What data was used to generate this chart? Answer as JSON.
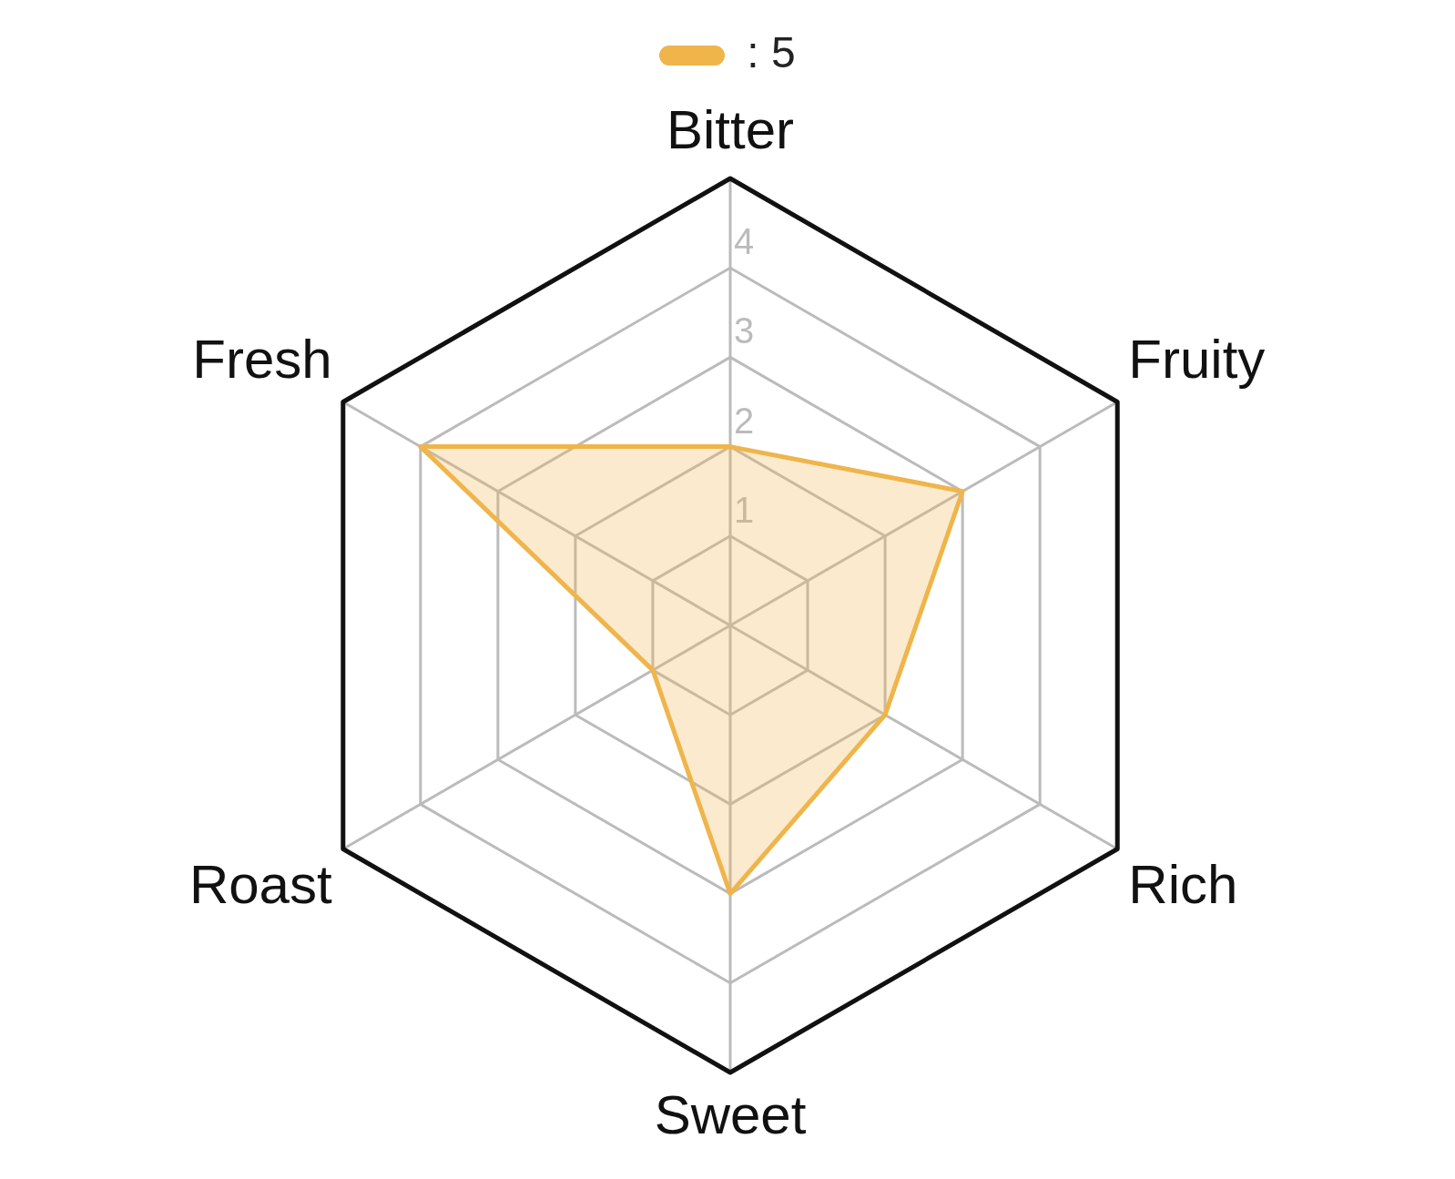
{
  "chart_data": {
    "type": "radar",
    "categories": [
      "Bitter",
      "Fruity",
      "Rich",
      "Sweet",
      "Roast",
      "Fresh"
    ],
    "series": [
      {
        "name": ": 5",
        "color": "#efb54b",
        "values": [
          2,
          3,
          2,
          3,
          1,
          4
        ]
      }
    ],
    "ylim": [
      0,
      5
    ],
    "yticks": [
      1,
      2,
      3,
      4
    ],
    "grid": true,
    "legend": "top",
    "marker": "none",
    "line_style": "solid"
  }
}
